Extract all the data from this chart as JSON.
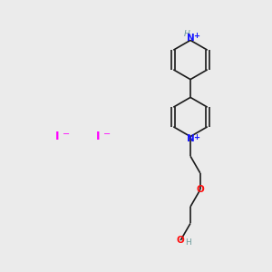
{
  "background_color": "#ebebeb",
  "bond_color": "#1a1a1a",
  "nitrogen_color": "#1414ff",
  "oxygen_color": "#ff0d0d",
  "iodide_color": "#ff00ff",
  "hydrogen_color": "#6a9a9a",
  "figsize": [
    3.0,
    3.0
  ],
  "dpi": 100,
  "xlim": [
    0,
    10
  ],
  "ylim": [
    0,
    10
  ]
}
